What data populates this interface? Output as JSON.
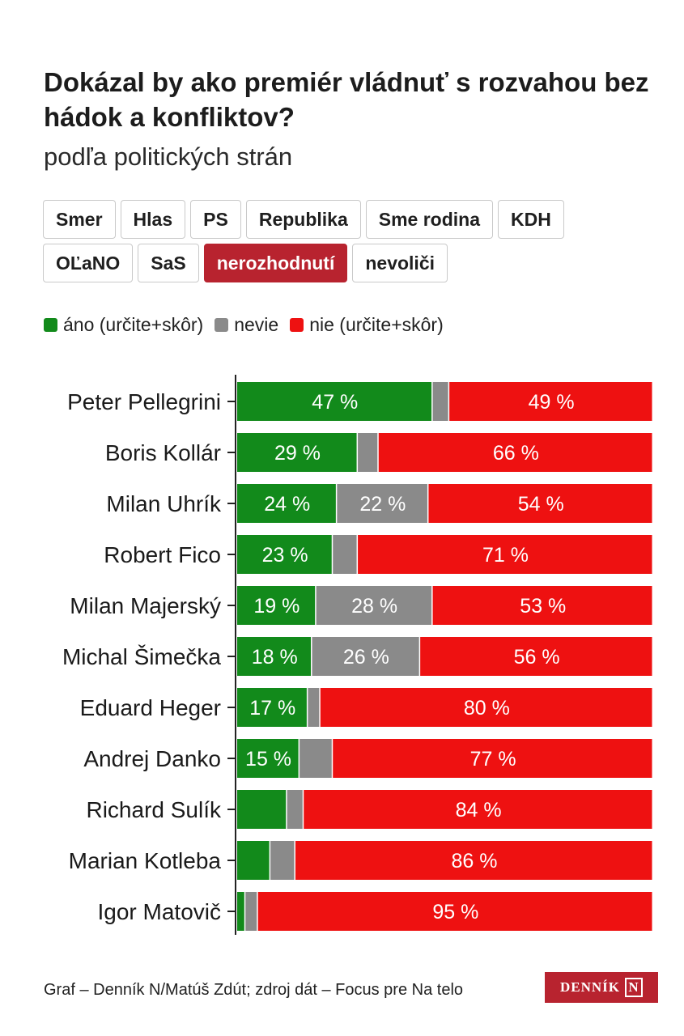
{
  "header": {
    "title": "Dokázal by ako premiér vládnuť s rozvahou bez hádok a konfliktov?",
    "subtitle": "podľa politických strán"
  },
  "tabs": [
    {
      "label": "Smer",
      "active": false
    },
    {
      "label": "Hlas",
      "active": false
    },
    {
      "label": "PS",
      "active": false
    },
    {
      "label": "Republika",
      "active": false
    },
    {
      "label": "Sme rodina",
      "active": false
    },
    {
      "label": "KDH",
      "active": false
    },
    {
      "label": "OĽaNO",
      "active": false
    },
    {
      "label": "SaS",
      "active": false
    },
    {
      "label": "nerozhodnutí",
      "active": true
    },
    {
      "label": "nevoliči",
      "active": false
    }
  ],
  "legend": [
    {
      "label": "áno (určite+skôr)",
      "color": "#128a1b"
    },
    {
      "label": "nevie",
      "color": "#8a8a8a"
    },
    {
      "label": "nie (určite+skôr)",
      "color": "#ee1111"
    }
  ],
  "chart_data": {
    "type": "bar",
    "orientation": "horizontal",
    "stacked": true,
    "categories": [
      "Peter Pellegrini",
      "Boris Kollár",
      "Milan Uhrík",
      "Robert Fico",
      "Milan Majerský",
      "Michal Šimečka",
      "Eduard Heger",
      "Andrej Danko",
      "Richard Sulík",
      "Marian Kotleba",
      "Igor Matovič"
    ],
    "series": [
      {
        "name": "áno (určite+skôr)",
        "color": "#128a1b",
        "values": [
          47,
          29,
          24,
          23,
          19,
          18,
          17,
          15,
          12,
          8,
          2
        ]
      },
      {
        "name": "nevie",
        "color": "#8a8a8a",
        "values": [
          4,
          5,
          22,
          6,
          28,
          26,
          3,
          8,
          4,
          6,
          3
        ]
      },
      {
        "name": "nie (určite+skôr)",
        "color": "#ee1111",
        "values": [
          49,
          66,
          54,
          71,
          53,
          56,
          80,
          77,
          84,
          86,
          95
        ]
      }
    ],
    "labels": [
      [
        "47 %",
        "",
        "49 %"
      ],
      [
        "29 %",
        "",
        "66 %"
      ],
      [
        "24 %",
        "22 %",
        "54 %"
      ],
      [
        "23 %",
        "",
        "71 %"
      ],
      [
        "19 %",
        "28 %",
        "53 %"
      ],
      [
        "18 %",
        "26 %",
        "56 %"
      ],
      [
        "17 %",
        "",
        "80 %"
      ],
      [
        "15 %",
        "",
        "77 %"
      ],
      [
        "",
        "",
        "84 %"
      ],
      [
        "",
        "",
        "86 %"
      ],
      [
        "",
        "",
        "95 %"
      ]
    ],
    "xlim": [
      0,
      100
    ]
  },
  "footer": {
    "credit": "Graf – Denník N/Matúš Zdút; zdroj dát – Focus pre Na telo",
    "logo_text": "DENNÍK",
    "logo_mark": "N"
  }
}
